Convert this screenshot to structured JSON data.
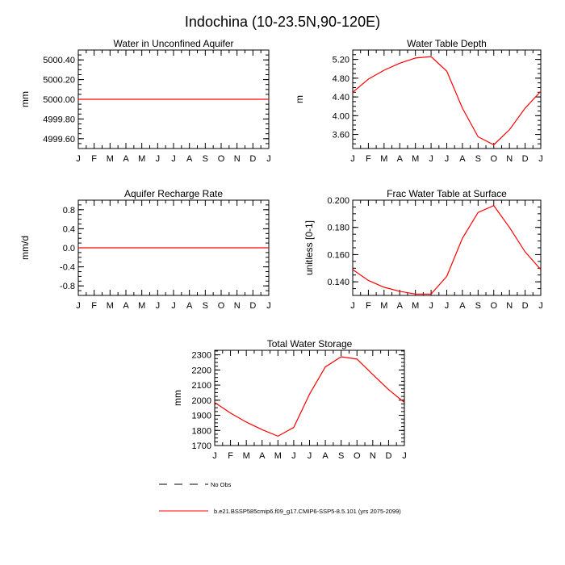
{
  "figure": {
    "title": "Indochina (10-23.5N,90-120E)"
  },
  "chart_data": [
    {
      "type": "line",
      "title": "Water in Unconfined Aquifer",
      "ylabel": "mm",
      "x": [
        "J",
        "F",
        "M",
        "A",
        "M",
        "J",
        "J",
        "A",
        "S",
        "O",
        "N",
        "D",
        "J"
      ],
      "yticks": [
        "4999.60",
        "4999.80",
        "5000.00",
        "5000.20",
        "5000.40"
      ],
      "ylim": [
        4999.5,
        5000.5
      ],
      "series": [
        {
          "name": "b.e21.BSSP585cmip6.f09_g17.CMIP6-SSP5-8.5.101 (yrs 2075-2099)",
          "color": "#ff0000",
          "values": [
            5000,
            5000,
            5000,
            5000,
            5000,
            5000,
            5000,
            5000,
            5000,
            5000,
            5000,
            5000,
            5000
          ]
        }
      ]
    },
    {
      "type": "line",
      "title": "Water Table Depth",
      "ylabel": "m",
      "x": [
        "J",
        "F",
        "M",
        "A",
        "M",
        "J",
        "J",
        "A",
        "S",
        "O",
        "N",
        "D",
        "J"
      ],
      "yticks": [
        "3.60",
        "4.00",
        "4.40",
        "4.80",
        "5.20"
      ],
      "ylim": [
        3.3,
        5.4
      ],
      "series": [
        {
          "name": "b.e21.BSSP585cmip6.f09_g17.CMIP6-SSP5-8.5.101 (yrs 2075-2099)",
          "color": "#ff0000",
          "values": [
            4.5,
            4.78,
            4.97,
            5.12,
            5.23,
            5.26,
            4.95,
            4.16,
            3.55,
            3.38,
            3.7,
            4.16,
            4.52
          ]
        }
      ]
    },
    {
      "type": "line",
      "title": "Aquifer Recharge Rate",
      "ylabel": "mm/d",
      "x": [
        "J",
        "F",
        "M",
        "A",
        "M",
        "J",
        "J",
        "A",
        "S",
        "O",
        "N",
        "D",
        "J"
      ],
      "yticks": [
        "-0.8",
        "-0.4",
        "0.0",
        "0.4",
        "0.8"
      ],
      "ylim": [
        -1.0,
        1.0
      ],
      "series": [
        {
          "name": "b.e21.BSSP585cmip6.f09_g17.CMIP6-SSP5-8.5.101 (yrs 2075-2099)",
          "color": "#ff0000",
          "values": [
            0,
            0,
            0,
            0,
            0,
            0,
            0,
            0,
            0,
            0,
            0,
            0,
            0
          ]
        }
      ]
    },
    {
      "type": "line",
      "title": "Frac Water Table at Surface",
      "ylabel": "unitless [0-1]",
      "x": [
        "J",
        "F",
        "M",
        "A",
        "M",
        "J",
        "J",
        "A",
        "S",
        "O",
        "N",
        "D",
        "J"
      ],
      "yticks": [
        "0.140",
        "0.160",
        "0.180",
        "0.200"
      ],
      "ylim": [
        0.13,
        0.2
      ],
      "series": [
        {
          "name": "b.e21.BSSP585cmip6.f09_g17.CMIP6-SSP5-8.5.101 (yrs 2075-2099)",
          "color": "#ff0000",
          "values": [
            0.149,
            0.141,
            0.136,
            0.133,
            0.131,
            0.131,
            0.144,
            0.172,
            0.191,
            0.196,
            0.18,
            0.162,
            0.149
          ]
        }
      ]
    },
    {
      "type": "line",
      "title": "Total Water Storage",
      "ylabel": "mm",
      "x": [
        "J",
        "F",
        "M",
        "A",
        "M",
        "J",
        "J",
        "A",
        "S",
        "O",
        "N",
        "D",
        "J"
      ],
      "yticks": [
        "1700",
        "1800",
        "1900",
        "2000",
        "2100",
        "2200",
        "2300"
      ],
      "ylim": [
        1700,
        2330
      ],
      "series": [
        {
          "name": "b.e21.BSSP585cmip6.f09_g17.CMIP6-SSP5-8.5.101 (yrs 2075-2099)",
          "color": "#ff0000",
          "values": [
            1985,
            1915,
            1855,
            1805,
            1762,
            1820,
            2040,
            2220,
            2287,
            2272,
            2170,
            2070,
            1985
          ]
        }
      ]
    }
  ],
  "legend": {
    "items": [
      {
        "label": "No Obs",
        "style": "dashed",
        "color": "#000000"
      },
      {
        "label": "b.e21.BSSP585cmip6.f09_g17.CMIP6-SSP5-8.5.101 (yrs 2075-2099)",
        "style": "solid",
        "color": "#ff0000"
      }
    ]
  }
}
